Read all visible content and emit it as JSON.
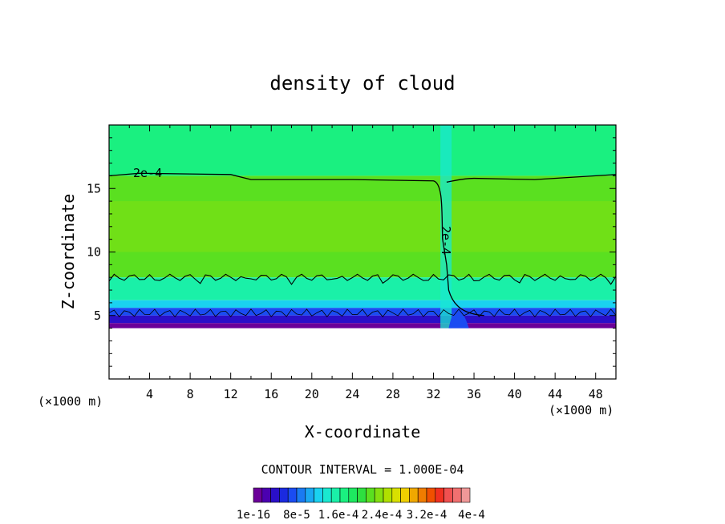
{
  "chart_data": {
    "type": "heatmap",
    "title": "density of cloud",
    "xlabel": "X-coordinate",
    "ylabel": "Z-coordinate",
    "x_unit_left": "(×1000 m)",
    "x_unit_right": "(×1000 m)",
    "xlim": [
      0,
      50
    ],
    "ylim": [
      0,
      20
    ],
    "x_ticks": [
      4,
      8,
      12,
      16,
      20,
      24,
      28,
      32,
      36,
      40,
      44,
      48
    ],
    "y_ticks": [
      5,
      10,
      15
    ],
    "contour_interval_text": "CONTOUR INTERVAL = 1.000E-04",
    "contour_labels": [
      "2e-4",
      "2e-4"
    ],
    "contour_upper_z": 16.0,
    "contour_lower_z": 8.0,
    "contour_x_column": 33.0,
    "cloud_base_z": 4.0,
    "colorbar": {
      "colors": [
        "#6b0099",
        "#4b00b0",
        "#2a0fc8",
        "#1a2ae0",
        "#1a4cf2",
        "#1a7af2",
        "#1aa8f2",
        "#1ad2f0",
        "#1ae8d0",
        "#1af0a8",
        "#1af080",
        "#1ee860",
        "#2ee040",
        "#5ae020",
        "#84e010",
        "#b0e000",
        "#d8e000",
        "#f0d000",
        "#f0a800",
        "#f07c00",
        "#f05000",
        "#f03020",
        "#f05050",
        "#f07070",
        "#f09898"
      ],
      "tick_labels": [
        "1e-16",
        "8e-5",
        "1.6e-4",
        "2.4e-4",
        "3.2e-4",
        "4e-4"
      ]
    }
  }
}
